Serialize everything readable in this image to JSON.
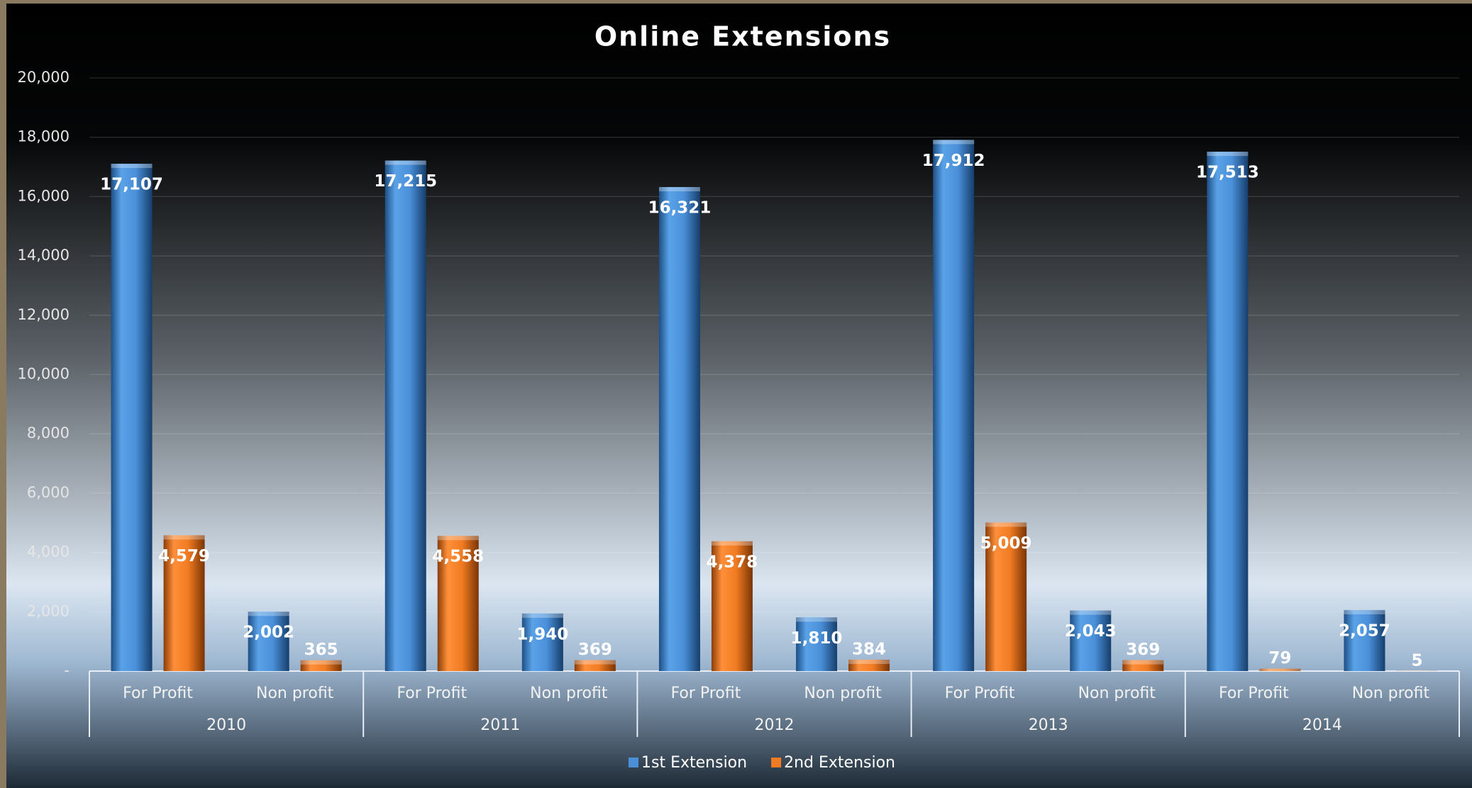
{
  "chart_data": {
    "type": "bar",
    "title": "Online Extensions",
    "categories": [
      "For Profit",
      "Non profit",
      "For Profit",
      "Non profit",
      "For Profit",
      "Non profit",
      "For Profit",
      "Non profit",
      "For Profit",
      "Non profit"
    ],
    "category_groups": [
      "2010",
      "2011",
      "2012",
      "2013",
      "2014"
    ],
    "series": [
      {
        "name": "1st Extension",
        "color": "#4a90d9",
        "values": [
          17107,
          2002,
          17215,
          1940,
          16321,
          1810,
          17912,
          2043,
          17513,
          2057
        ],
        "value_labels": [
          "17,107",
          "2,002",
          "17,215",
          "1,940",
          "16,321",
          "1,810",
          "17,912",
          "2,043",
          "17,513",
          "2,057"
        ]
      },
      {
        "name": "2nd Extension",
        "color": "#f07b22",
        "values": [
          4579,
          365,
          4558,
          369,
          4378,
          384,
          5009,
          369,
          79,
          5
        ],
        "value_labels": [
          "4,579",
          "365",
          "4,558",
          "369",
          "4,378",
          "384",
          "5,009",
          "369",
          "79",
          "5"
        ]
      }
    ],
    "ylim": [
      0,
      20000
    ],
    "yticks": [
      {
        "value": 0,
        "label": "-"
      },
      {
        "value": 2000,
        "label": "2,000"
      },
      {
        "value": 4000,
        "label": "4,000"
      },
      {
        "value": 6000,
        "label": "6,000"
      },
      {
        "value": 8000,
        "label": "8,000"
      },
      {
        "value": 10000,
        "label": "10,000"
      },
      {
        "value": 12000,
        "label": "12,000"
      },
      {
        "value": 14000,
        "label": "14,000"
      },
      {
        "value": 16000,
        "label": "16,000"
      },
      {
        "value": 18000,
        "label": "18,000"
      },
      {
        "value": 20000,
        "label": "20,000"
      }
    ],
    "grid": true,
    "legend": "bottom"
  }
}
